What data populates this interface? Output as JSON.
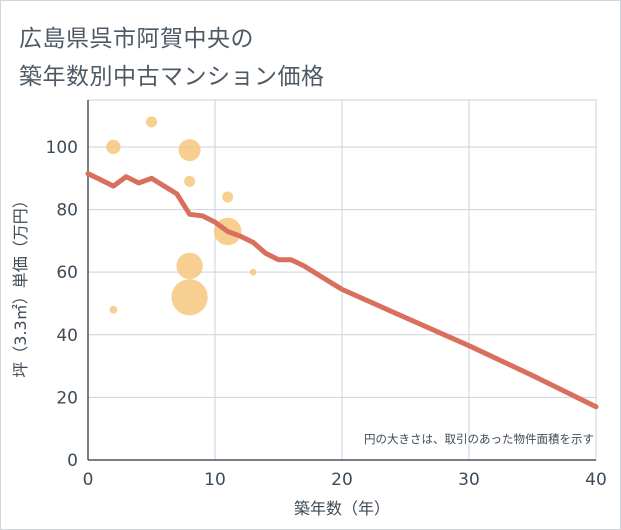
{
  "page": {
    "title_line1": "広島県呉市阿賀中央の",
    "title_line2": "築年数別中古マンション価格"
  },
  "chart_data": {
    "type": "scatter",
    "title": "広島県呉市阿賀中央の築年数別中古マンション価格",
    "xlabel": "築年数（年）",
    "ylabel": "坪（3.3㎡）単価（万円）",
    "xlim": [
      0,
      40
    ],
    "ylim": [
      0,
      115
    ],
    "xticks": [
      0,
      10,
      20,
      30,
      40
    ],
    "yticks": [
      0,
      20,
      40,
      60,
      80,
      100
    ],
    "grid": true,
    "note": "円の大きさは、取引のあった物件面積を示す",
    "bubble_color": "#f5c77e",
    "trend_color": "#d9705d",
    "points": [
      {
        "x": 2,
        "y": 100,
        "size": 1.3
      },
      {
        "x": 2,
        "y": 48,
        "size": 0.7
      },
      {
        "x": 5,
        "y": 108,
        "size": 1.0
      },
      {
        "x": 8,
        "y": 99,
        "size": 2.0
      },
      {
        "x": 8,
        "y": 89,
        "size": 1.0
      },
      {
        "x": 8,
        "y": 62,
        "size": 2.4
      },
      {
        "x": 8,
        "y": 52,
        "size": 3.3
      },
      {
        "x": 11,
        "y": 84,
        "size": 1.0
      },
      {
        "x": 11,
        "y": 73,
        "size": 2.5
      },
      {
        "x": 13,
        "y": 60,
        "size": 0.6
      }
    ],
    "trend": {
      "x": [
        0,
        1,
        2,
        3,
        4,
        5,
        6,
        7,
        8,
        9,
        10,
        11,
        12,
        13,
        14,
        15,
        16,
        17,
        18,
        19,
        20,
        25,
        30,
        35,
        40
      ],
      "y": [
        91.5,
        89.5,
        87.5,
        90.5,
        88.5,
        90,
        87.5,
        85,
        78.5,
        78,
        76,
        73,
        71.5,
        69.5,
        66,
        64,
        64,
        62,
        59.5,
        57,
        54.5,
        45.5,
        36.5,
        27,
        17
      ]
    }
  }
}
